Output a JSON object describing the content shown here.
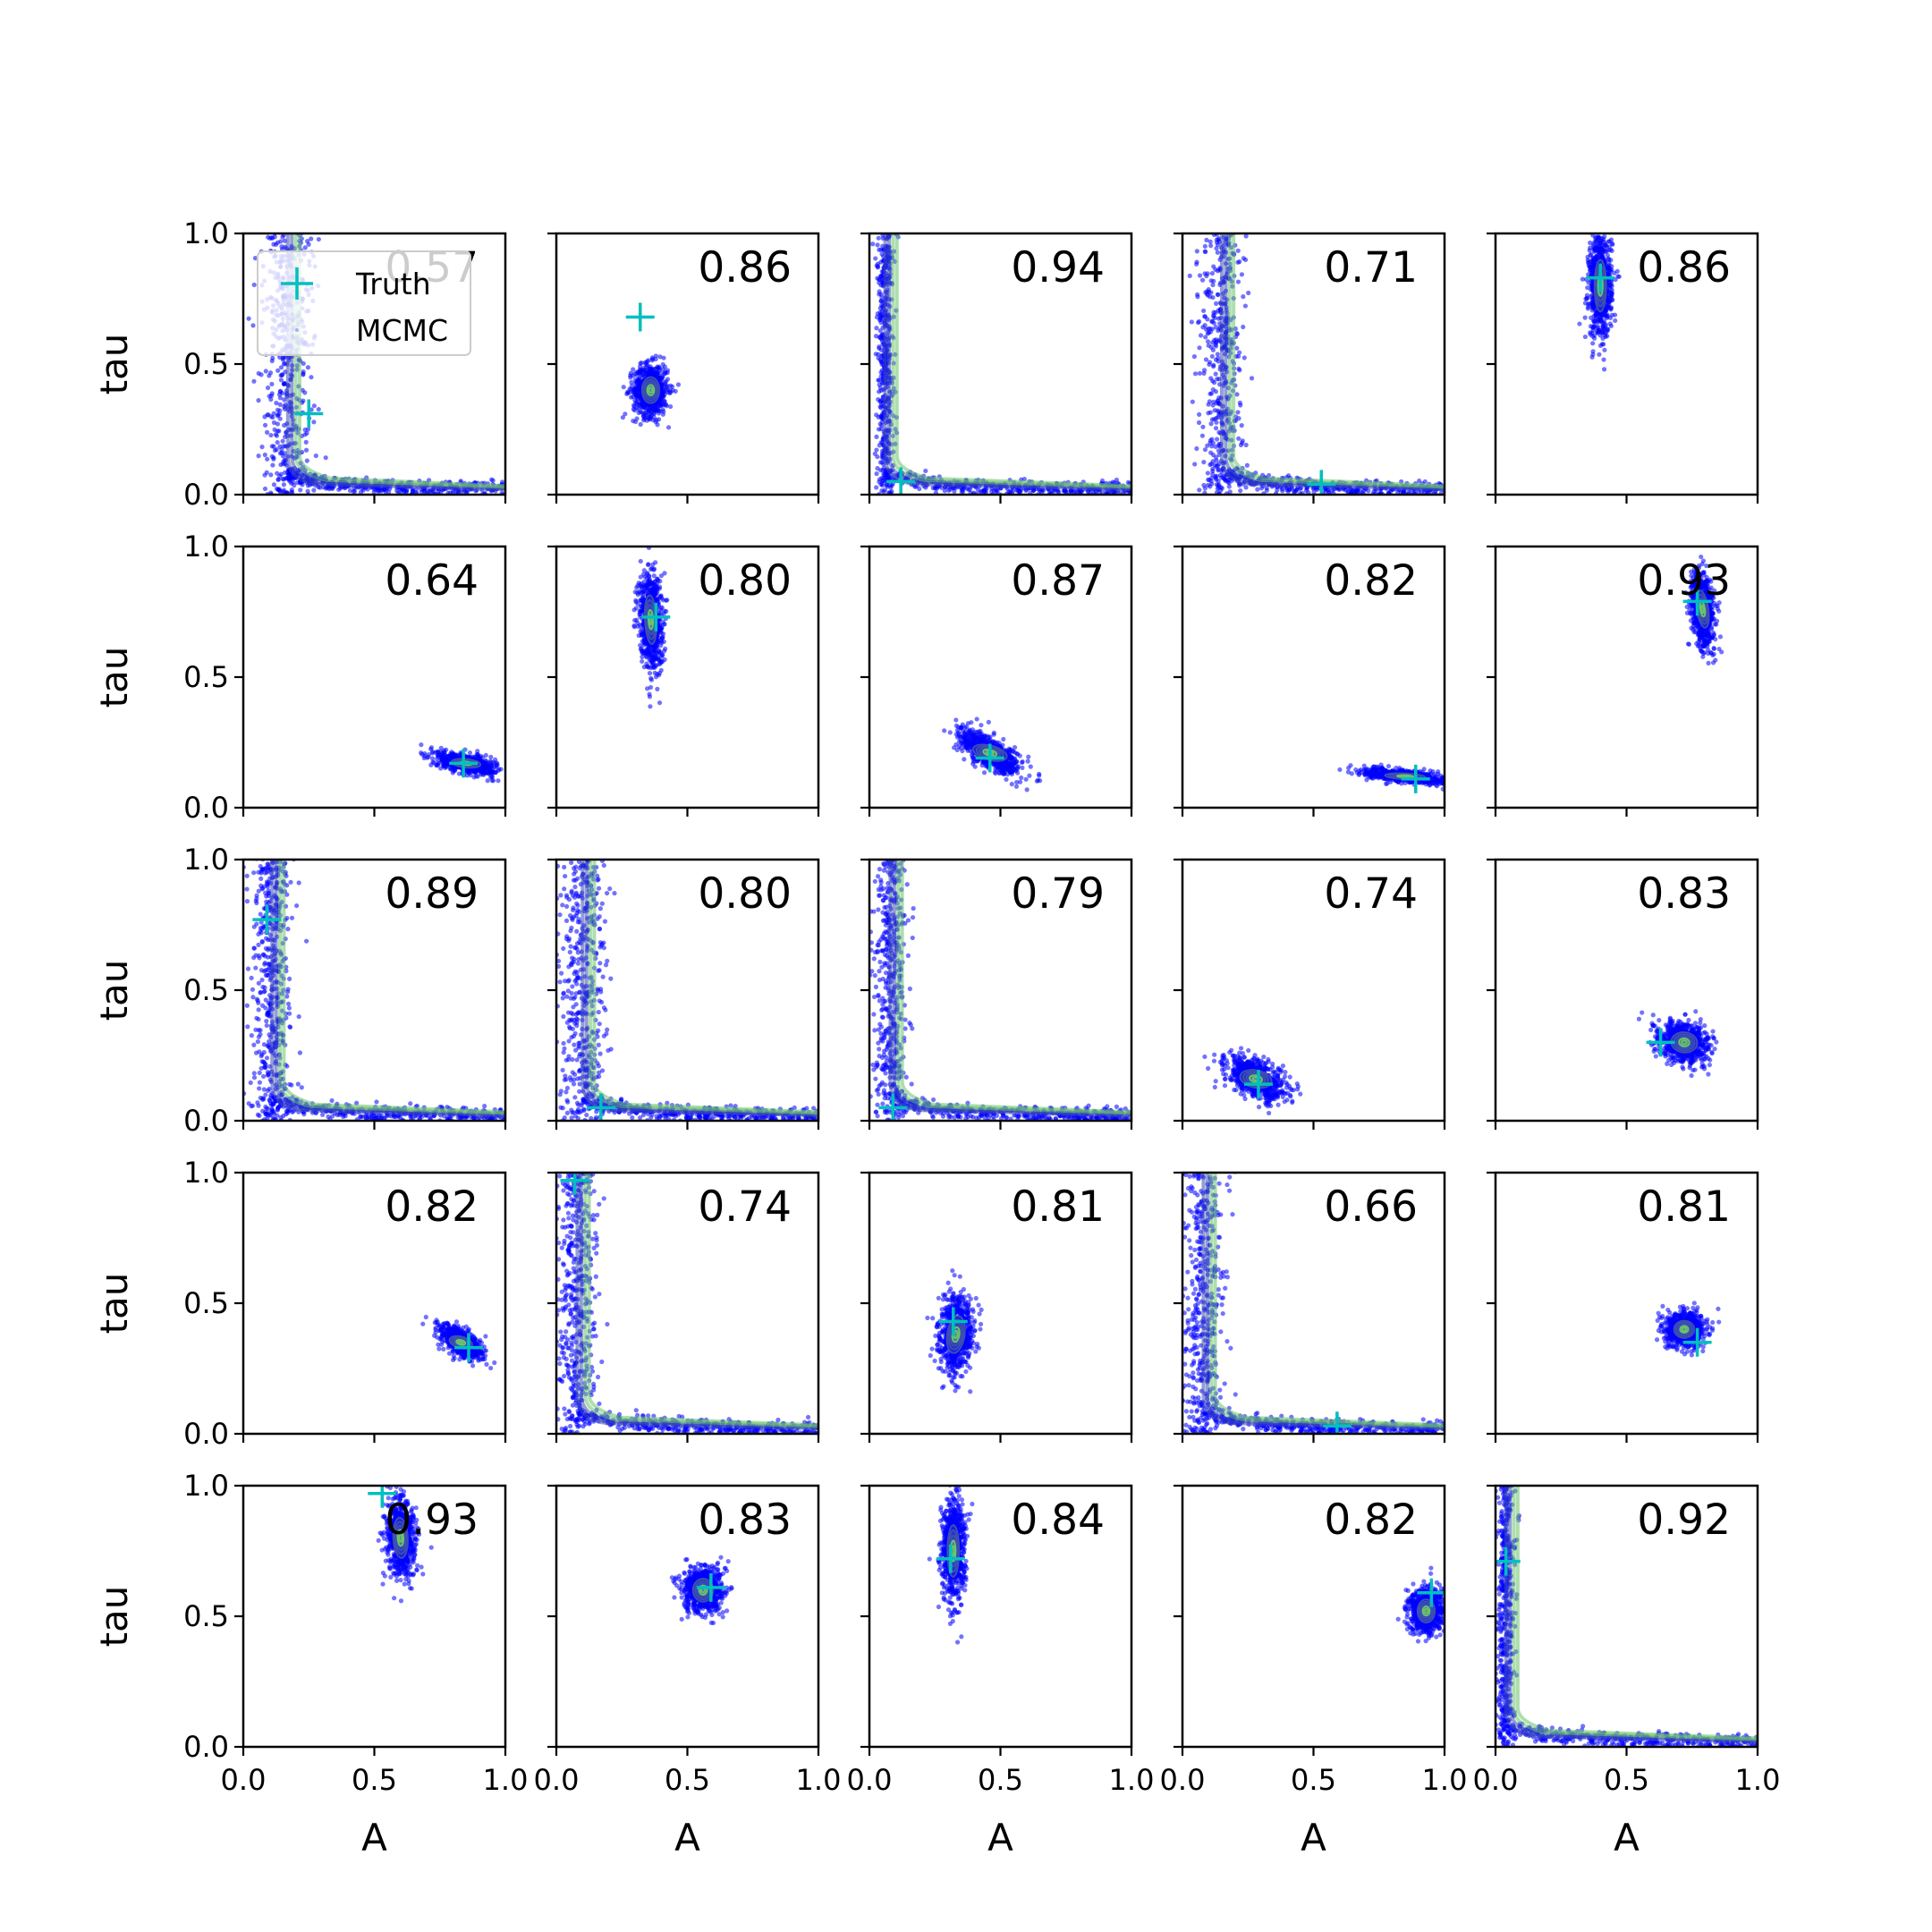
{
  "chart_data": {
    "type": "scatter",
    "grid": false,
    "xlabel": "A",
    "ylabel": "tau",
    "xlim": [
      0,
      1
    ],
    "ylim": [
      0,
      1
    ],
    "xticks": [
      "0.0",
      "0.5",
      "1.0"
    ],
    "yticks": [
      "0.0",
      "0.5",
      "1.0"
    ],
    "legend": {
      "placement": "upper-left of first panel",
      "entries": [
        {
          "label": "Truth",
          "marker": "plus",
          "color": "#00bfbf"
        },
        {
          "label": "MCMC",
          "marker": "dot",
          "color": "#0000ff"
        }
      ]
    },
    "colors": {
      "samples": "#0000ff",
      "truth": "#00bfbf",
      "contour_outer": "#3d4fb0",
      "contour_inner": "#6cc36a"
    },
    "panels": [
      {
        "row": 0,
        "col": 0,
        "label": "0.57",
        "truth": [
          0.25,
          0.31
        ],
        "shape": "curve",
        "center": [
          0.17,
          0.25
        ],
        "spread": [
          0.06,
          0.1
        ],
        "tail": true
      },
      {
        "row": 0,
        "col": 1,
        "label": "0.86",
        "truth": [
          0.32,
          0.68
        ],
        "shape": "blob",
        "center": [
          0.36,
          0.4
        ],
        "spread": [
          0.06,
          0.09
        ],
        "tilt": 0
      },
      {
        "row": 0,
        "col": 2,
        "label": "0.94",
        "truth": [
          0.12,
          0.05
        ],
        "shape": "curve",
        "center": [
          0.06,
          0.3
        ],
        "spread": [
          0.02,
          0.3
        ],
        "tail": true
      },
      {
        "row": 0,
        "col": 3,
        "label": "0.71",
        "truth": [
          0.53,
          0.04
        ],
        "shape": "curve",
        "center": [
          0.15,
          0.35
        ],
        "spread": [
          0.05,
          0.3
        ],
        "tail": true
      },
      {
        "row": 0,
        "col": 4,
        "label": "0.86",
        "truth": [
          0.4,
          0.83
        ],
        "shape": "blob",
        "center": [
          0.4,
          0.8
        ],
        "spread": [
          0.04,
          0.18
        ],
        "tilt": 0
      },
      {
        "row": 1,
        "col": 0,
        "label": "0.64",
        "truth": [
          0.84,
          0.17
        ],
        "shape": "blob",
        "center": [
          0.85,
          0.17
        ],
        "spread": [
          0.1,
          0.03
        ],
        "tilt": -0.2
      },
      {
        "row": 1,
        "col": 1,
        "label": "0.80",
        "truth": [
          0.38,
          0.73
        ],
        "shape": "blob",
        "center": [
          0.36,
          0.72
        ],
        "spread": [
          0.04,
          0.17
        ],
        "tilt": 0.1
      },
      {
        "row": 1,
        "col": 2,
        "label": "0.87",
        "truth": [
          0.46,
          0.19
        ],
        "shape": "blob",
        "center": [
          0.46,
          0.21
        ],
        "spread": [
          0.12,
          0.05
        ],
        "tilt": -0.5
      },
      {
        "row": 1,
        "col": 3,
        "label": "0.82",
        "truth": [
          0.89,
          0.11
        ],
        "shape": "blob",
        "center": [
          0.85,
          0.12
        ],
        "spread": [
          0.14,
          0.02
        ],
        "tilt": -0.1
      },
      {
        "row": 1,
        "col": 4,
        "label": "0.93",
        "truth": [
          0.77,
          0.79
        ],
        "shape": "blob",
        "center": [
          0.79,
          0.76
        ],
        "spread": [
          0.04,
          0.13
        ],
        "tilt": 0.3
      },
      {
        "row": 2,
        "col": 0,
        "label": "0.89",
        "truth": [
          0.09,
          0.77
        ],
        "shape": "curve",
        "center": [
          0.11,
          0.45
        ],
        "spread": [
          0.05,
          0.3
        ],
        "tail": true
      },
      {
        "row": 2,
        "col": 1,
        "label": "0.80",
        "truth": [
          0.17,
          0.05
        ],
        "shape": "curve",
        "center": [
          0.1,
          0.3
        ],
        "spread": [
          0.06,
          0.3
        ],
        "tail": true
      },
      {
        "row": 2,
        "col": 2,
        "label": "0.79",
        "truth": [
          0.09,
          0.05
        ],
        "shape": "curve",
        "center": [
          0.08,
          0.3
        ],
        "spread": [
          0.04,
          0.3
        ],
        "tail": true
      },
      {
        "row": 2,
        "col": 3,
        "label": "0.74",
        "truth": [
          0.29,
          0.14
        ],
        "shape": "blob",
        "center": [
          0.28,
          0.16
        ],
        "spread": [
          0.11,
          0.06
        ],
        "tilt": -0.4
      },
      {
        "row": 2,
        "col": 4,
        "label": "0.83",
        "truth": [
          0.63,
          0.3
        ],
        "shape": "blob",
        "center": [
          0.72,
          0.3
        ],
        "spread": [
          0.09,
          0.07
        ],
        "tilt": -0.2
      },
      {
        "row": 3,
        "col": 0,
        "label": "0.82",
        "truth": [
          0.86,
          0.33
        ],
        "shape": "blob",
        "center": [
          0.83,
          0.35
        ],
        "spread": [
          0.08,
          0.04
        ],
        "tilt": -0.5
      },
      {
        "row": 3,
        "col": 1,
        "label": "0.74",
        "truth": [
          0.07,
          0.97
        ],
        "shape": "curve",
        "center": [
          0.08,
          0.35
        ],
        "spread": [
          0.05,
          0.3
        ],
        "tail": true
      },
      {
        "row": 3,
        "col": 2,
        "label": "0.81",
        "truth": [
          0.32,
          0.43
        ],
        "shape": "blob",
        "center": [
          0.33,
          0.38
        ],
        "spread": [
          0.06,
          0.13
        ],
        "tilt": -0.3
      },
      {
        "row": 3,
        "col": 3,
        "label": "0.66",
        "truth": [
          0.59,
          0.03
        ],
        "shape": "curve",
        "center": [
          0.08,
          0.3
        ],
        "spread": [
          0.05,
          0.3
        ],
        "tail": true
      },
      {
        "row": 3,
        "col": 4,
        "label": "0.81",
        "truth": [
          0.77,
          0.35
        ],
        "shape": "blob",
        "center": [
          0.72,
          0.4
        ],
        "spread": [
          0.07,
          0.06
        ],
        "tilt": 0
      },
      {
        "row": 4,
        "col": 0,
        "label": "0.93",
        "truth": [
          0.53,
          0.97
        ],
        "shape": "blob",
        "center": [
          0.6,
          0.8
        ],
        "spread": [
          0.05,
          0.14
        ],
        "tilt": 0.1
      },
      {
        "row": 4,
        "col": 1,
        "label": "0.83",
        "truth": [
          0.59,
          0.61
        ],
        "shape": "blob",
        "center": [
          0.56,
          0.6
        ],
        "spread": [
          0.07,
          0.08
        ],
        "tilt": 0
      },
      {
        "row": 4,
        "col": 2,
        "label": "0.84",
        "truth": [
          0.31,
          0.72
        ],
        "shape": "blob",
        "center": [
          0.32,
          0.75
        ],
        "spread": [
          0.04,
          0.18
        ],
        "tilt": 0
      },
      {
        "row": 4,
        "col": 3,
        "label": "0.82",
        "truth": [
          0.95,
          0.59
        ],
        "shape": "blob",
        "center": [
          0.93,
          0.52
        ],
        "spread": [
          0.06,
          0.08
        ],
        "tilt": 0
      },
      {
        "row": 4,
        "col": 4,
        "label": "0.92",
        "truth": [
          0.04,
          0.71
        ],
        "shape": "curve",
        "center": [
          0.04,
          0.3
        ],
        "spread": [
          0.02,
          0.3
        ],
        "tail": true
      }
    ]
  }
}
